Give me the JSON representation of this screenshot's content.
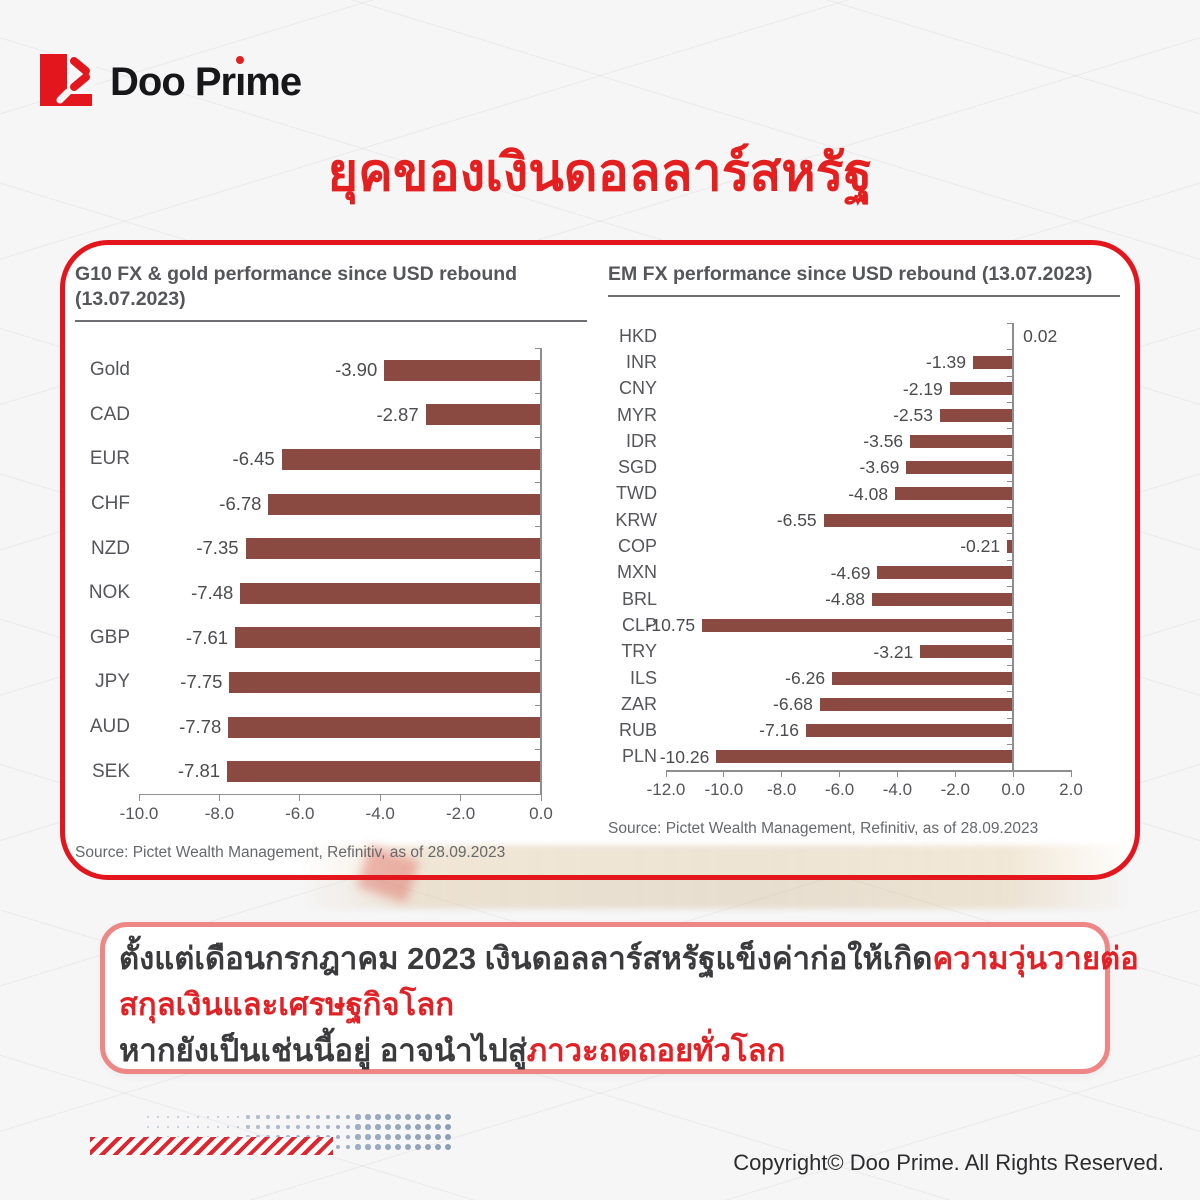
{
  "logo": {
    "brand_pre": "Doo Pr",
    "brand_i": "ı",
    "brand_post": "me",
    "brand_full": "Doo Prime"
  },
  "title": "ยุคของเงินดอลลาร์สหรัฐ",
  "chart_data": [
    {
      "type": "bar",
      "title": "G10 FX & gold performance since USD rebound (13.07.2023)",
      "categories": [
        "Gold",
        "CAD",
        "EUR",
        "CHF",
        "NZD",
        "NOK",
        "GBP",
        "JPY",
        "AUD",
        "SEK"
      ],
      "values": [
        -3.9,
        -2.87,
        -6.45,
        -6.78,
        -7.35,
        -7.48,
        -7.61,
        -7.75,
        -7.78,
        -7.81
      ],
      "xlabel": "",
      "ylabel": "",
      "xlim": [
        -10,
        0
      ],
      "xticks": [
        "-10.0",
        "-8.0",
        "-6.0",
        "-4.0",
        "-2.0",
        "0.0"
      ],
      "orientation": "horizontal",
      "grid": false,
      "bar_color": "#8a4a42",
      "source": "Source: Pictet Wealth Management, Refinitiv, as of 28.09.2023"
    },
    {
      "type": "bar",
      "title": "EM FX performance since USD rebound (13.07.2023)",
      "categories": [
        "HKD",
        "INR",
        "CNY",
        "MYR",
        "IDR",
        "SGD",
        "TWD",
        "KRW",
        "COP",
        "MXN",
        "BRL",
        "CLP",
        "TRY",
        "ILS",
        "ZAR",
        "RUB",
        "PLN"
      ],
      "values": [
        0.02,
        -1.39,
        -2.19,
        -2.53,
        -3.56,
        -3.69,
        -4.08,
        -6.55,
        -0.21,
        -4.69,
        -4.88,
        -10.75,
        -3.21,
        -6.26,
        -6.68,
        -7.16,
        -10.26
      ],
      "xlabel": "",
      "ylabel": "",
      "xlim": [
        -12,
        2
      ],
      "xticks": [
        "-12.0",
        "-10.0",
        "-8.0",
        "-6.0",
        "-4.0",
        "-2.0",
        "0.0",
        "2.0"
      ],
      "orientation": "horizontal",
      "grid": false,
      "bar_color": "#8a4a42",
      "source": "Source: Pictet Wealth Management, Refinitiv, as of 28.09.2023"
    }
  ],
  "summary": {
    "line1_dark": "ตั้งแต่เดือนกรกฎาคม 2023 เงินดอลลาร์สหรัฐแข็งค่าก่อให้เกิด",
    "line1_red": "ความวุ่นวายต่อ",
    "line2_red": "สกุลเงินและเศรษฐกิจโลก",
    "line3_dark": "หากยังเป็นเช่นนี้อยู่ อาจนำไปสู่",
    "line3_red": "ภาวะถดถอยทั่วโลก"
  },
  "footer": {
    "copyright": "Copyright© Doo Prime. All Rights Reserved."
  },
  "colors": {
    "accent_red": "#e4161d",
    "title_red": "#e3201f",
    "bar": "#8a4a42",
    "summary_border": "#ee8686",
    "summary_red_text": "#e02226",
    "text_dark": "#3b3b3d",
    "dots": "#8b9fb8"
  }
}
